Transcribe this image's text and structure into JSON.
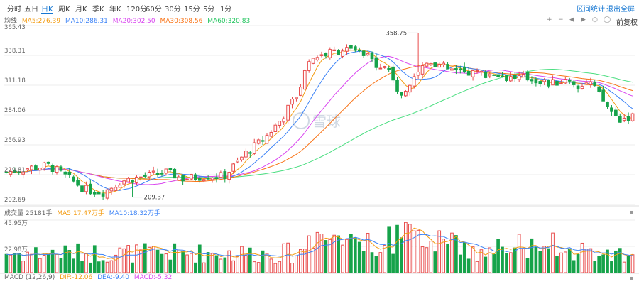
{
  "toolbar": {
    "tabs": [
      {
        "label": "分时",
        "active": false
      },
      {
        "label": "五日",
        "active": false
      },
      {
        "label": "日K",
        "active": true
      },
      {
        "label": "周K",
        "active": false
      },
      {
        "label": "月K",
        "active": false
      },
      {
        "label": "季K",
        "active": false
      },
      {
        "label": "年K",
        "active": false
      },
      {
        "label": "120分",
        "active": false
      },
      {
        "label": "60分",
        "active": false
      },
      {
        "label": "30分",
        "active": false
      },
      {
        "label": "15分",
        "active": false
      },
      {
        "label": "5分",
        "active": false
      },
      {
        "label": "1分",
        "active": false
      }
    ],
    "interval_stats": "区间统计",
    "fullscreen": "退出全屏",
    "adjust": "前复权"
  },
  "price_legend": {
    "label": "均线",
    "ma5": "MA5:276.39",
    "ma10": "MA10:286.31",
    "ma20": "MA20:302.50",
    "ma30": "MA30:308.56",
    "ma60": "MA60:320.83"
  },
  "volume_legend": {
    "label": "成交量 25181手",
    "ma5": "MA5:17.47万手",
    "ma10": "MA10:18.32万手"
  },
  "macd_legend": {
    "label": "MACD (12,26,9)",
    "dif": "DIF:-12.06",
    "dea": "DEA:-9.40",
    "macd": "MACD:-5.32"
  },
  "watermark": "雪球",
  "colors": {
    "up": "#e84b4b",
    "down": "#16a34a",
    "ma5": "#f39c12",
    "ma10": "#3b82f6",
    "ma20": "#d946ef",
    "ma30": "#f97316",
    "ma60": "#4ade80"
  },
  "chart_data": {
    "type": "candlestick",
    "price_axis": {
      "ticks": [
        "365.43",
        "338.31",
        "311.18",
        "284.06",
        "256.93",
        "229.81",
        "202.69"
      ],
      "min": 202.69,
      "max": 365.43
    },
    "annotations": [
      {
        "text": "358.75",
        "value": 358.75,
        "kind": "high"
      },
      {
        "text": "209.37",
        "value": 209.37,
        "kind": "low"
      }
    ],
    "volume_axis": {
      "ticks": [
        "45.95万",
        "22.98万"
      ],
      "max": 45.95
    },
    "series_names": [
      "MA5",
      "MA10",
      "MA20",
      "MA30",
      "MA60"
    ]
  }
}
